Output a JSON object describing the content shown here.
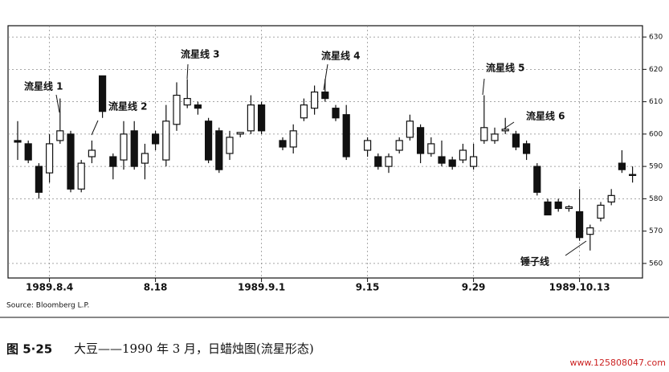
{
  "chart_data": {
    "type": "candlestick",
    "categories": [
      null,
      null,
      null,
      "1989.8.4",
      null,
      null,
      null,
      null,
      null,
      null,
      null,
      null,
      null,
      "8.18",
      null,
      null,
      null,
      null,
      null,
      null,
      null,
      null,
      null,
      "1989.9.1",
      null,
      null,
      null,
      null,
      null,
      null,
      null,
      null,
      null,
      "9.15",
      null,
      null,
      null,
      null,
      null,
      null,
      null,
      null,
      null,
      "9.29",
      null,
      null,
      null,
      null,
      null,
      null,
      null,
      null,
      null,
      "1989.10.13",
      null,
      null,
      null,
      null,
      null
    ],
    "open": [
      598,
      597,
      590,
      588,
      598,
      600,
      583,
      593,
      618,
      593,
      592,
      601,
      591,
      600,
      592,
      603,
      609,
      609,
      604,
      601,
      594,
      600,
      601,
      609,
      null,
      598,
      596,
      605,
      608,
      613,
      608,
      606,
      null,
      595,
      593,
      590,
      595,
      599,
      602,
      594,
      593,
      592,
      592,
      590,
      598,
      598,
      601,
      600,
      597,
      590,
      579,
      579,
      577,
      576,
      569,
      574,
      579,
      591,
      587.5
    ],
    "high": [
      604,
      598,
      591,
      600,
      611,
      601,
      592,
      598,
      618,
      594,
      604,
      604,
      597,
      601,
      609,
      616,
      617,
      610,
      605,
      602,
      601,
      600.5,
      612,
      610,
      null,
      599,
      603,
      611,
      615,
      617,
      609,
      609,
      null,
      599,
      594,
      594,
      599,
      606,
      603,
      599,
      598,
      593,
      597,
      597,
      612,
      602,
      605,
      601,
      598,
      591,
      580,
      580,
      578,
      583,
      572,
      579,
      583,
      595,
      590
    ],
    "low": [
      592,
      591,
      580,
      585,
      597,
      582,
      582,
      591,
      605,
      586,
      589,
      589,
      586,
      595,
      590,
      601,
      608,
      606,
      591,
      588,
      592,
      599,
      600,
      600,
      null,
      595,
      594,
      604,
      606,
      610,
      604,
      592,
      null,
      593,
      589,
      588,
      594,
      598,
      591,
      593,
      590,
      589,
      591,
      589,
      597,
      597,
      600,
      595,
      592,
      581,
      575,
      576,
      576,
      567,
      564,
      573,
      578,
      588,
      585
    ],
    "close": [
      597.5,
      592,
      582,
      597,
      601,
      583,
      591,
      595,
      607,
      590,
      600,
      590,
      594,
      597,
      604,
      612,
      611,
      608,
      592,
      589,
      599,
      600.5,
      609,
      601,
      null,
      596,
      601,
      609,
      613,
      611,
      605,
      593,
      null,
      598,
      590,
      593,
      598,
      604,
      594,
      597,
      591,
      590,
      595,
      593,
      602,
      600,
      601.5,
      596,
      594,
      582,
      575,
      577,
      577.5,
      568,
      571,
      578,
      581,
      589,
      587.5
    ],
    "up_color": "#ffffff",
    "down_color": "#111111",
    "ylim": [
      555.5,
      633.5
    ],
    "yticks": [
      560,
      570,
      580,
      590,
      600,
      610,
      620,
      630
    ],
    "grid": true,
    "annotations": [
      "流星线 1",
      "流星线 2",
      "流星线 3",
      "流星线 4",
      "流星线 5",
      "流星线 6",
      "锤子线"
    ],
    "source": "Source: Bloomberg L.P."
  },
  "caption": {
    "number": "图 5·25",
    "text": "大豆——1990 年 3 月，日蜡烛图(流星形态)"
  },
  "watermark": "www.125808047.com"
}
